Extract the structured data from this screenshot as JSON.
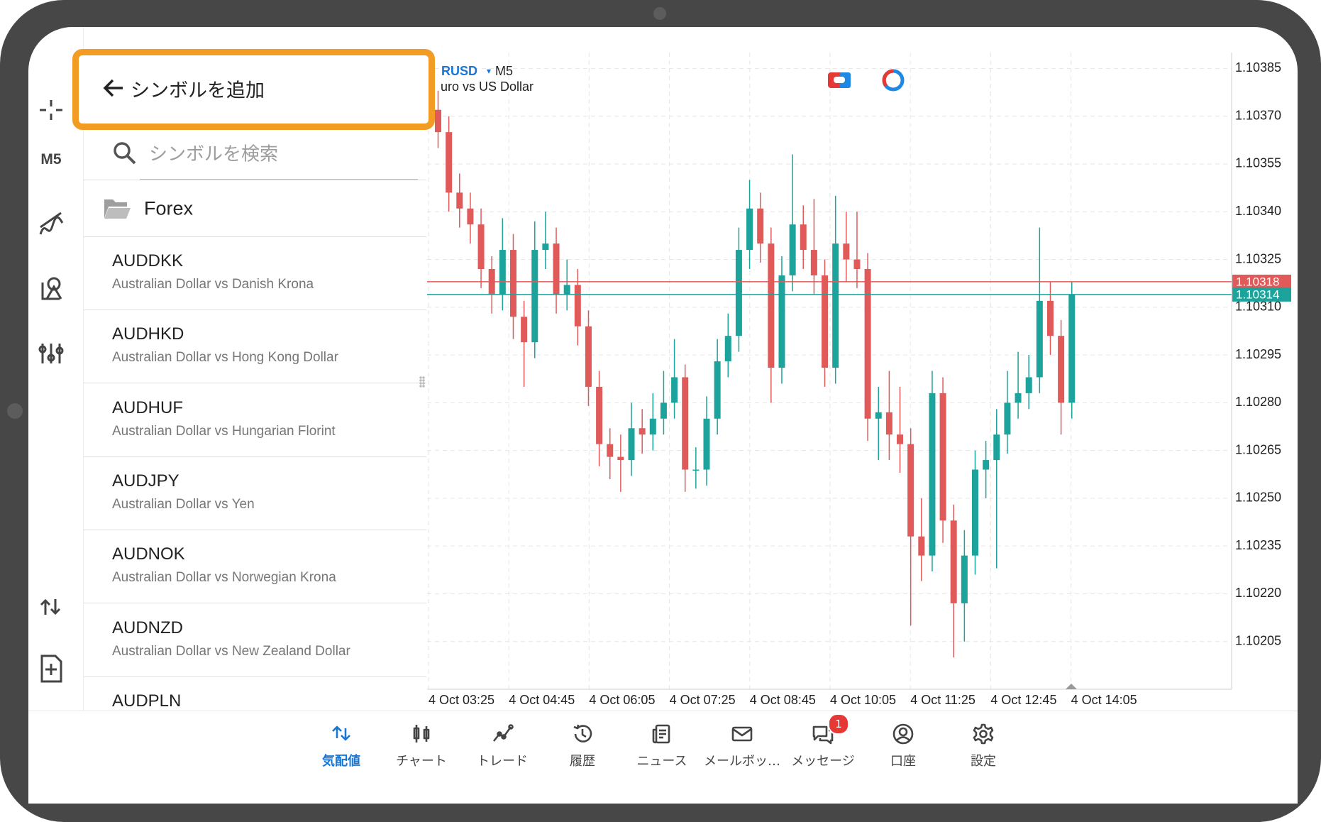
{
  "sidebar": {
    "timeframe": "M5"
  },
  "panel": {
    "title": "シンボルを追加",
    "search_placeholder": "シンボルを検索",
    "folder": "Forex",
    "symbols": [
      {
        "code": "AUDDKK",
        "description": "Australian Dollar vs Danish Krona"
      },
      {
        "code": "AUDHKD",
        "description": "Australian Dollar vs Hong Kong Dollar"
      },
      {
        "code": "AUDHUF",
        "description": "Australian Dollar vs Hungarian Florint"
      },
      {
        "code": "AUDJPY",
        "description": "Australian Dollar vs Yen"
      },
      {
        "code": "AUDNOK",
        "description": "Australian Dollar vs Norwegian Krona"
      },
      {
        "code": "AUDNZD",
        "description": "Australian Dollar vs New Zealand Dollar"
      },
      {
        "code": "AUDPLN"
      }
    ]
  },
  "chart_data": {
    "type": "candlestick",
    "symbol": "EURUSD",
    "timeframe": "M5",
    "description": "Euro vs US Dollar",
    "up_color": "#1ba39c",
    "down_color": "#e05a5a",
    "grid": true,
    "ylim": [
      1.1019,
      1.1039
    ],
    "yticks": [
      1.10385,
      {
        "value": 1.1037,
        "label": "1.10370"
      },
      1.10355,
      {
        "value": 1.1034,
        "label": "1.10340"
      },
      1.10325,
      {
        "value": 1.1031,
        "label": "1.10310"
      },
      1.10295,
      {
        "value": 1.1028,
        "label": "1.10280"
      },
      1.10265,
      {
        "value": 1.1025,
        "label": "1.10250"
      },
      1.10235,
      {
        "value": 1.1022,
        "label": "1.10220"
      },
      1.10205
    ],
    "xlabels": [
      "4 Oct 03:25",
      "4 Oct 04:45",
      "4 Oct 06:05",
      "4 Oct 07:25",
      "4 Oct 08:45",
      "4 Oct 10:05",
      "4 Oct 11:25",
      "4 Oct 12:45",
      "4 Oct 14:05"
    ],
    "price_lines": [
      {
        "value": 1.10318,
        "color": "#e05a5a"
      },
      {
        "value": 1.10314,
        "color": "#1ba39c"
      }
    ],
    "open": [
      1.10372,
      1.10365,
      1.10346,
      1.10341,
      1.10336,
      1.10322,
      1.10314,
      1.10328,
      1.10307,
      1.10299,
      1.10328,
      1.1033,
      1.10314,
      1.10317,
      1.10304,
      1.10285,
      1.10267,
      1.10263,
      1.10262,
      1.10272,
      1.1027,
      1.10275,
      1.1028,
      1.10288,
      1.10259,
      1.10259,
      1.10275,
      1.10293,
      1.10301,
      1.10328,
      1.10341,
      1.1033,
      1.10291,
      1.1032,
      1.10336,
      1.10328,
      1.1032,
      1.10291,
      1.1033,
      1.10325,
      1.10322,
      1.10275,
      1.10277,
      1.1027,
      1.10267,
      1.10238,
      1.10232,
      1.10283,
      1.10243,
      1.10217,
      1.10232,
      1.10259,
      1.10262,
      1.1027,
      1.1028,
      1.10283,
      1.10288,
      1.10312,
      1.10301,
      1.1028
    ],
    "high": [
      1.10378,
      1.1037,
      1.10352,
      1.10346,
      1.10341,
      1.10326,
      1.10338,
      1.10333,
      1.10312,
      1.10337,
      1.1034,
      1.10335,
      1.10325,
      1.10322,
      1.10309,
      1.1029,
      1.10272,
      1.1027,
      1.1028,
      1.10278,
      1.10283,
      1.1029,
      1.103,
      1.10292,
      1.10266,
      1.10282,
      1.103,
      1.10308,
      1.10335,
      1.1035,
      1.10346,
      1.10335,
      1.10326,
      1.10358,
      1.10342,
      1.10344,
      1.10325,
      1.10345,
      1.1034,
      1.1034,
      1.10327,
      1.10285,
      1.1029,
      1.10285,
      1.10272,
      1.1025,
      1.1029,
      1.10288,
      1.10248,
      1.1024,
      1.10265,
      1.10268,
      1.10278,
      1.1029,
      1.10296,
      1.10295,
      1.10335,
      1.10318,
      1.10306,
      1.10318
    ],
    "low": [
      1.1036,
      1.1034,
      1.10335,
      1.1033,
      1.10316,
      1.10308,
      1.10309,
      1.103,
      1.10285,
      1.10294,
      1.10322,
      1.10308,
      1.10309,
      1.10298,
      1.10279,
      1.1026,
      1.10256,
      1.10252,
      1.10257,
      1.10264,
      1.10265,
      1.1027,
      1.10275,
      1.10252,
      1.10253,
      1.10254,
      1.1027,
      1.10288,
      1.10296,
      1.10322,
      1.10324,
      1.1028,
      1.10286,
      1.10315,
      1.10322,
      1.10314,
      1.10285,
      1.10286,
      1.10318,
      1.10316,
      1.10268,
      1.10262,
      1.10262,
      1.10258,
      1.1021,
      1.10224,
      1.10227,
      1.10236,
      1.102,
      1.10205,
      1.10226,
      1.1025,
      1.10228,
      1.10264,
      1.10275,
      1.10278,
      1.10283,
      1.10295,
      1.1027,
      1.10275
    ],
    "close": [
      1.10365,
      1.10346,
      1.10341,
      1.10336,
      1.10322,
      1.10314,
      1.10328,
      1.10307,
      1.10299,
      1.10328,
      1.1033,
      1.10314,
      1.10317,
      1.10304,
      1.10285,
      1.10267,
      1.10263,
      1.10262,
      1.10272,
      1.1027,
      1.10275,
      1.1028,
      1.10288,
      1.10259,
      1.10259,
      1.10275,
      1.10293,
      1.10301,
      1.10328,
      1.10341,
      1.1033,
      1.10291,
      1.1032,
      1.10336,
      1.10328,
      1.1032,
      1.10291,
      1.1033,
      1.10325,
      1.10322,
      1.10275,
      1.10277,
      1.1027,
      1.10267,
      1.10238,
      1.10232,
      1.10283,
      1.10243,
      1.10217,
      1.10232,
      1.10259,
      1.10262,
      1.1027,
      1.1028,
      1.10283,
      1.10288,
      1.10312,
      1.10301,
      1.1028,
      1.10314
    ]
  },
  "nav": {
    "active": 0,
    "badge": 1,
    "items": [
      "気配値",
      "チャート",
      "トレード",
      "履歴",
      "ニュース",
      "メールボッ…",
      "メッセージ",
      "口座",
      "設定"
    ]
  }
}
